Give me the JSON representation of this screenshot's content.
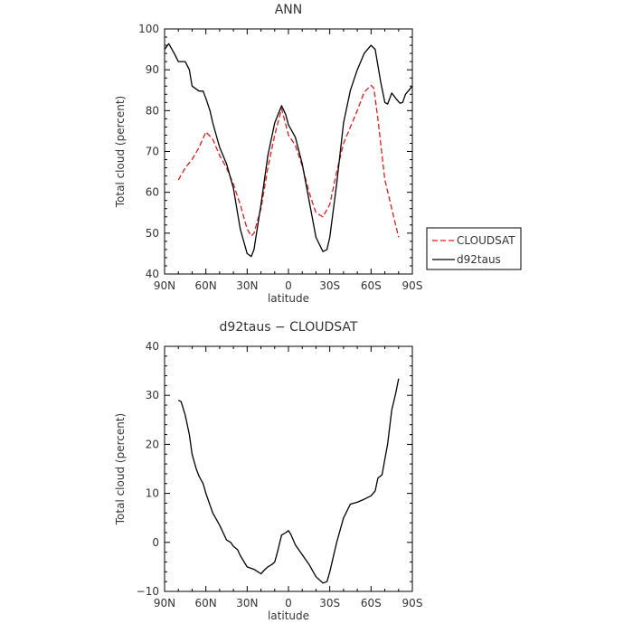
{
  "chart_data": [
    {
      "type": "line",
      "title": "ANN",
      "xlabel": "latitude",
      "ylabel": "Total cloud (percent)",
      "xlim": [
        90,
        -90
      ],
      "ylim": [
        40,
        100
      ],
      "xticks": [
        90,
        60,
        30,
        0,
        -30,
        -60,
        -90
      ],
      "xtick_labels": [
        "90N",
        "60N",
        "30N",
        "0",
        "30S",
        "60S",
        "90S"
      ],
      "yticks": [
        40,
        50,
        60,
        70,
        80,
        90,
        100
      ],
      "ytick_labels": [
        "40",
        "50",
        "60",
        "70",
        "80",
        "90",
        "100"
      ],
      "legend_position": "right",
      "series": [
        {
          "name": "CLOUDSAT",
          "color": "#e41a1c",
          "dash": true,
          "x": [
            80,
            75,
            70,
            65,
            60,
            55,
            50,
            45,
            40,
            35,
            30,
            27,
            25,
            20,
            15,
            10,
            5,
            0,
            -5,
            -10,
            -15,
            -20,
            -25,
            -30,
            -35,
            -40,
            -45,
            -50,
            -55,
            -60,
            -62,
            -65,
            -70,
            -75,
            -80
          ],
          "y": [
            63,
            66,
            68,
            71,
            74.8,
            73,
            69,
            66,
            62,
            57,
            51,
            49.3,
            50,
            56,
            66,
            74,
            80.5,
            74,
            71.5,
            66.5,
            60,
            55,
            54,
            57,
            65,
            72,
            76,
            80,
            84.5,
            86.2,
            85.5,
            78,
            63,
            56,
            49
          ]
        },
        {
          "name": "d92taus",
          "color": "#000000",
          "dash": false,
          "x": [
            90,
            87,
            83,
            80,
            75,
            72,
            70,
            65,
            62,
            60,
            57,
            55,
            50,
            45,
            40,
            35,
            30,
            27,
            25,
            20,
            15,
            10,
            5,
            2,
            0,
            -5,
            -10,
            -15,
            -20,
            -25,
            -28,
            -30,
            -35,
            -40,
            -45,
            -50,
            -55,
            -60,
            -63,
            -67,
            -70,
            -72,
            -75,
            -78,
            -81,
            -83,
            -85,
            -90
          ],
          "y": [
            95,
            96.4,
            94,
            92,
            92,
            90,
            86,
            84.8,
            84.8,
            83,
            80,
            77,
            71,
            67,
            61,
            51,
            45,
            44.3,
            46,
            57,
            69,
            77,
            81.2,
            79,
            76.5,
            73.5,
            67,
            58,
            49,
            45.5,
            46,
            49,
            62,
            77,
            85,
            90,
            94,
            96,
            95,
            87,
            82,
            81.6,
            84.3,
            83,
            81.8,
            82,
            84,
            86
          ]
        }
      ]
    },
    {
      "type": "line",
      "title": "d92taus − CLOUDSAT",
      "xlabel": "latitude",
      "ylabel": "Total cloud (percent)",
      "xlim": [
        90,
        -90
      ],
      "ylim": [
        -10,
        40
      ],
      "xticks": [
        90,
        60,
        30,
        0,
        -30,
        -60,
        -90
      ],
      "xtick_labels": [
        "90N",
        "60N",
        "30N",
        "0",
        "30S",
        "60S",
        "90S"
      ],
      "yticks": [
        -10,
        0,
        10,
        20,
        30,
        40
      ],
      "ytick_labels": [
        "−10",
        "0",
        "10",
        "20",
        "30",
        "40"
      ],
      "series": [
        {
          "color": "#000000",
          "dash": false,
          "x": [
            80,
            78,
            75,
            72,
            70,
            67,
            65,
            62,
            60,
            55,
            50,
            45,
            42,
            40,
            37,
            35,
            30,
            25,
            20,
            17,
            15,
            12,
            10,
            8,
            5,
            2,
            0,
            -2,
            -5,
            -10,
            -15,
            -20,
            -25,
            -28,
            -30,
            -35,
            -40,
            -45,
            -50,
            -55,
            -60,
            -63,
            -65,
            -68,
            -70,
            -72,
            -75,
            -78,
            -80
          ],
          "y": [
            29,
            28.7,
            26,
            22,
            18,
            15,
            13.5,
            12,
            10,
            6,
            3.5,
            0.5,
            0,
            -0.8,
            -1.5,
            -2.7,
            -5,
            -5.5,
            -6.4,
            -5.5,
            -5,
            -4.5,
            -4,
            -2,
            1.5,
            2,
            2.4,
            1.5,
            -0.5,
            -2.5,
            -4.5,
            -7,
            -8.3,
            -8,
            -6,
            0,
            5,
            7.8,
            8.2,
            8.8,
            9.5,
            10.5,
            13.1,
            13.8,
            17,
            20,
            27,
            30.5,
            33.4
          ]
        }
      ]
    }
  ]
}
